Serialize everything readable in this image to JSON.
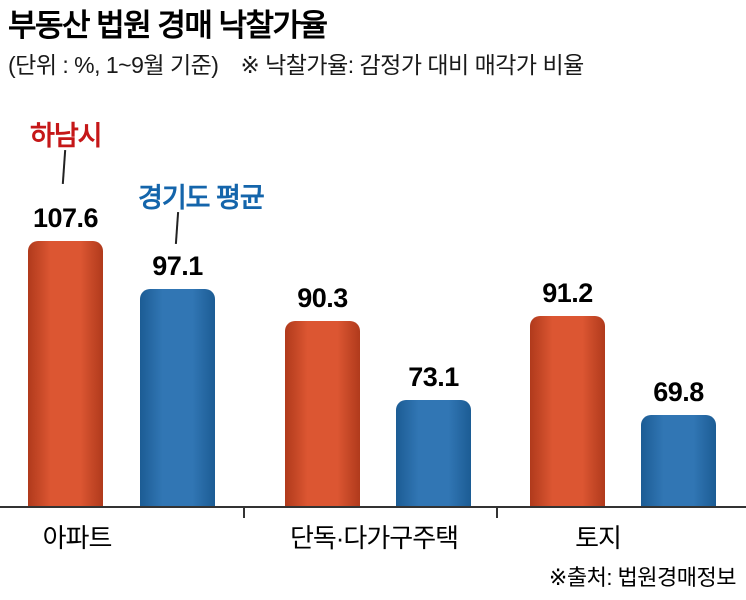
{
  "header": {
    "title": "부동산 법원 경매 낙찰가율",
    "unit_note": "(단위 : %, 1~9월 기준)",
    "definition_note": "※ 낙찰가율: 감정가 대비 매각가 비율"
  },
  "legend": {
    "series1": "하남시",
    "series2": "경기도 평균",
    "series1_color": "#c51718",
    "series2_color": "#1465ab"
  },
  "source": "※출처: 법원경매정보",
  "chart_data": {
    "type": "bar",
    "title": "부동산 법원 경매 낙찰가율",
    "unit": "%",
    "period": "1~9월 기준",
    "categories": [
      "아파트",
      "단독·다가구주택",
      "토지"
    ],
    "series": [
      {
        "name": "하남시",
        "color": "#dc5632",
        "color_dark": "#b03a1c",
        "values": [
          107.6,
          90.3,
          91.2
        ]
      },
      {
        "name": "경기도 평균",
        "color": "#3176b4",
        "color_dark": "#1c5c94",
        "values": [
          97.1,
          73.1,
          69.8
        ]
      }
    ],
    "value_labels": [
      "107.6",
      "97.1",
      "90.3",
      "73.1",
      "91.2",
      "69.8"
    ],
    "grid": false,
    "legend_position": "callout-above-first-group",
    "axis_baseline_value": 50
  }
}
